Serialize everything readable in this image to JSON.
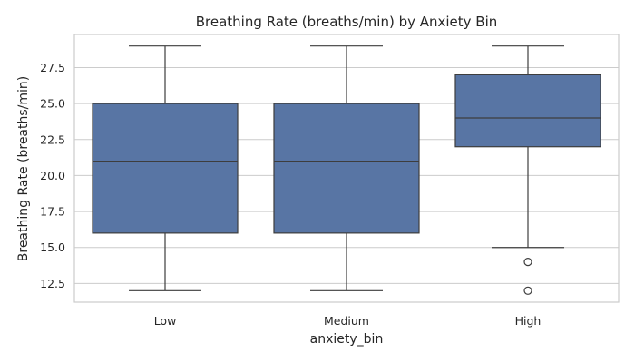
{
  "chart_data": {
    "type": "box",
    "title": "Breathing Rate (breaths/min) by Anxiety Bin",
    "xlabel": "anxiety_bin",
    "ylabel": "Breathing Rate (breaths/min)",
    "ylim": [
      11.2,
      29.8
    ],
    "yticks": [
      12.5,
      15.0,
      17.5,
      20.0,
      22.5,
      25.0,
      27.5
    ],
    "ytick_labels": [
      "12.5",
      "15.0",
      "17.5",
      "20.0",
      "22.5",
      "25.0",
      "27.5"
    ],
    "grid": true,
    "box_color": "#5875a4",
    "categories": [
      "Low",
      "Medium",
      "High"
    ],
    "boxes": [
      {
        "category": "Low",
        "whisker_low": 12,
        "q1": 16,
        "median": 21,
        "q3": 25,
        "whisker_high": 29,
        "outliers": []
      },
      {
        "category": "Medium",
        "whisker_low": 12,
        "q1": 16,
        "median": 21,
        "q3": 25,
        "whisker_high": 29,
        "outliers": []
      },
      {
        "category": "High",
        "whisker_low": 15,
        "q1": 22,
        "median": 24,
        "q3": 27,
        "whisker_high": 29,
        "outliers": [
          14,
          12
        ]
      }
    ]
  }
}
